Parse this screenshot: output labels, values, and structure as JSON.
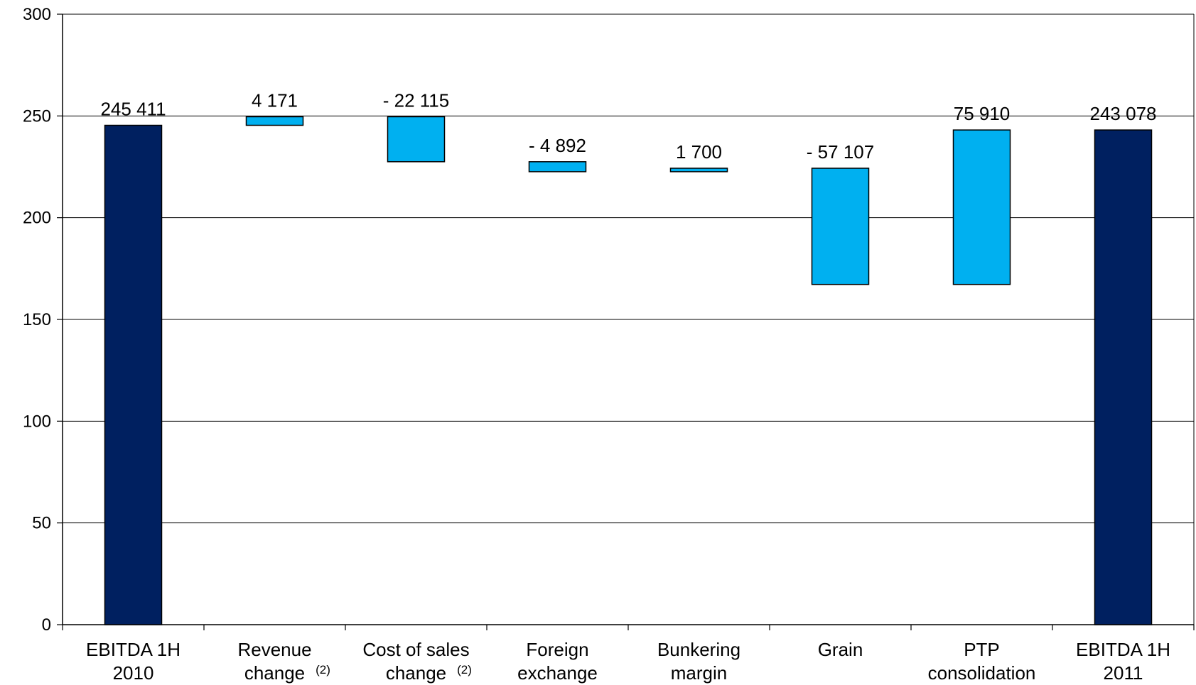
{
  "chart_data": {
    "type": "bar",
    "subtype": "waterfall",
    "title": "",
    "xlabel": "",
    "ylabel": "",
    "ylim": [
      0,
      300
    ],
    "yticks": [
      0,
      50,
      100,
      150,
      200,
      250,
      300
    ],
    "grid": true,
    "legend": "none",
    "colors": {
      "total": "#002060",
      "delta": "#00B0F0",
      "edge": "#000000",
      "grid": "#000000"
    },
    "bars": [
      {
        "lines": [
          "EBITDA 1H",
          "2010"
        ],
        "footnote": "",
        "kind": "total",
        "bottom": 0,
        "top": 245.4,
        "label": "245 411"
      },
      {
        "lines": [
          "Revenue",
          "change"
        ],
        "footnote": "(2)",
        "kind": "delta",
        "bottom": 245.4,
        "top": 249.6,
        "label": "4 171"
      },
      {
        "lines": [
          "Cost of sales",
          "change"
        ],
        "footnote": "(2)",
        "kind": "delta",
        "bottom": 227.5,
        "top": 249.6,
        "label": "- 22 115"
      },
      {
        "lines": [
          "Foreign",
          "exchange"
        ],
        "footnote": "",
        "kind": "delta",
        "bottom": 222.6,
        "top": 227.5,
        "label": "- 4 892"
      },
      {
        "lines": [
          "Bunkering",
          "margin"
        ],
        "footnote": "",
        "kind": "delta",
        "bottom": 222.6,
        "top": 224.3,
        "label": "1 700"
      },
      {
        "lines": [
          "Grain",
          ""
        ],
        "footnote": "",
        "kind": "delta",
        "bottom": 167.2,
        "top": 224.3,
        "label": "- 57 107"
      },
      {
        "lines": [
          "PTP",
          "consolidation"
        ],
        "footnote": "",
        "kind": "delta",
        "bottom": 167.2,
        "top": 243.1,
        "label": "75 910"
      },
      {
        "lines": [
          "EBITDA 1H",
          "2011"
        ],
        "footnote": "",
        "kind": "total",
        "bottom": 0,
        "top": 243.1,
        "label": "243 078"
      }
    ]
  }
}
